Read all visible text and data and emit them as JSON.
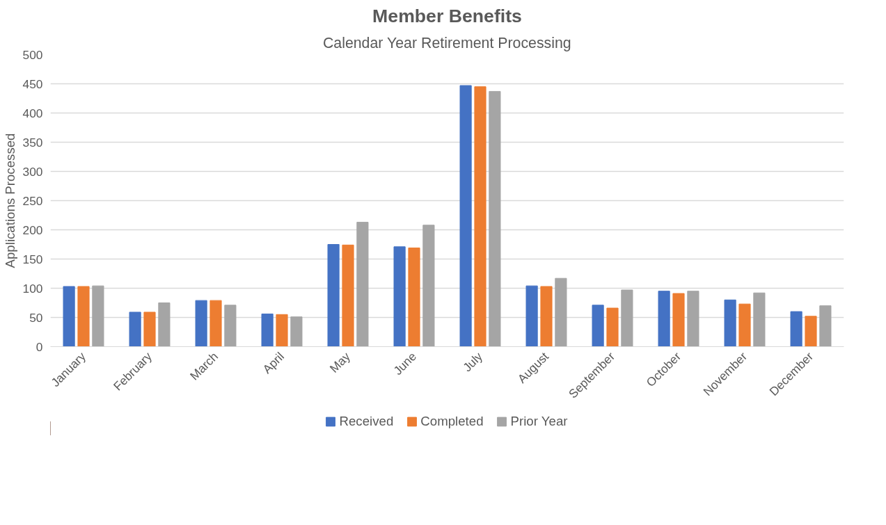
{
  "chart_data": {
    "type": "bar",
    "title": "Member Benefits",
    "subtitle": "Calendar Year Retirement Processing",
    "ylabel": "Applications Processed",
    "categories": [
      "January",
      "February",
      "March",
      "April",
      "May",
      "June",
      "July",
      "August",
      "September",
      "October",
      "November",
      "December"
    ],
    "series": [
      {
        "name": "Received",
        "color": "#4472c4",
        "values": [
          103,
          59,
          79,
          56,
          175,
          171,
          447,
          104,
          71,
          95,
          80,
          60
        ]
      },
      {
        "name": "Completed",
        "color": "#ed7d31",
        "values": [
          103,
          59,
          79,
          55,
          174,
          169,
          445,
          103,
          66,
          91,
          73,
          52
        ]
      },
      {
        "name": "Prior Year",
        "color": "#a5a5a5",
        "values": [
          104,
          75,
          71,
          51,
          213,
          208,
          437,
          117,
          97,
          95,
          92,
          70
        ]
      }
    ],
    "ylim": [
      0,
      500
    ],
    "yticks": [
      0,
      50,
      100,
      150,
      200,
      250,
      300,
      350,
      400,
      450,
      500
    ],
    "grid": "y",
    "legend": "bottom"
  }
}
